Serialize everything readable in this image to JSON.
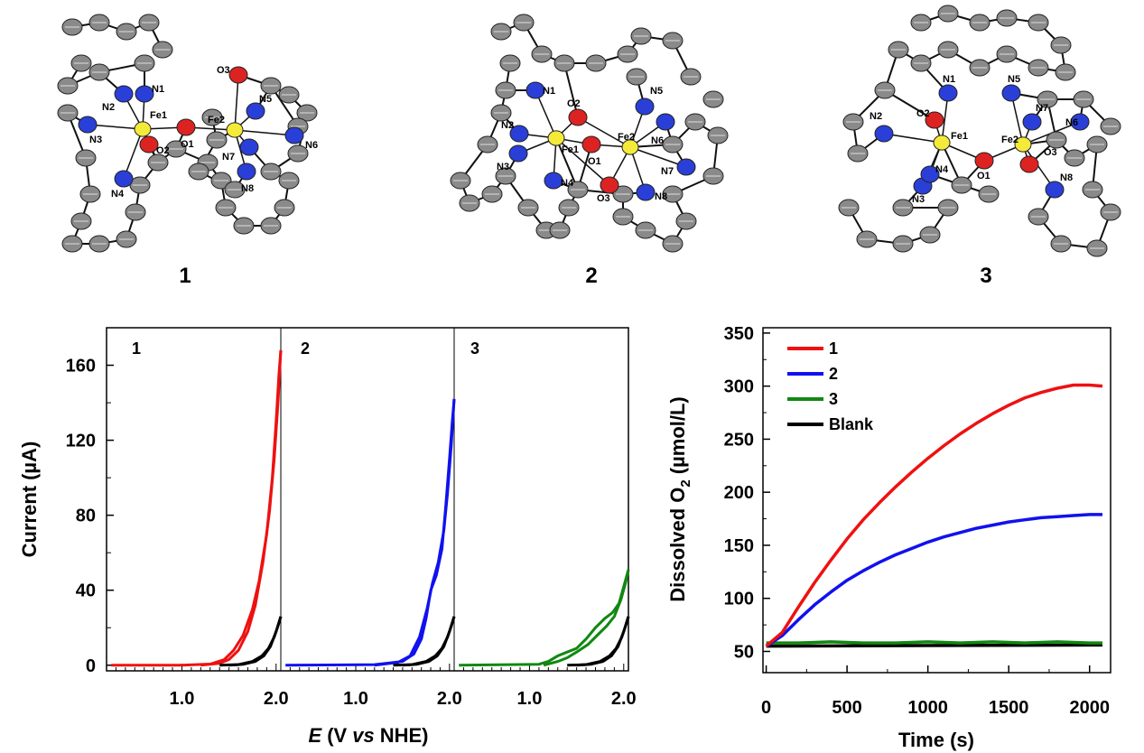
{
  "structures": [
    {
      "label": "1",
      "atoms": [
        "N1",
        "N2",
        "N3",
        "N4",
        "Fe1",
        "O1",
        "O2",
        "Fe2",
        "O3",
        "N5",
        "N6",
        "N7",
        "N8"
      ]
    },
    {
      "label": "2",
      "atoms": [
        "N1",
        "N2",
        "N3",
        "N4",
        "O2",
        "Fe1",
        "O1",
        "Fe2",
        "N5",
        "N6",
        "N7",
        "O3",
        "N8"
      ]
    },
    {
      "label": "3",
      "atoms": [
        "N1",
        "N5",
        "N2",
        "O2",
        "Fe1",
        "N3",
        "N4",
        "O1",
        "N7",
        "Fe2",
        "O3",
        "N6",
        "N8"
      ]
    }
  ],
  "chart_data": [
    {
      "type": "line",
      "panels": [
        "1",
        "2",
        "3"
      ],
      "xlabel_italic": "E",
      "xlabel_mid": "(V",
      "xlabel_italic2": "vs",
      "xlabel_end": "NHE)",
      "ylabel_main": "Current",
      "ylabel_unit": "(µA)",
      "ylim": [
        -3,
        180
      ],
      "xlim": [
        0.2,
        2.05
      ],
      "y_ticks": [
        0,
        40,
        80,
        120,
        160
      ],
      "y_tick_labels": [
        "0",
        "40",
        "80",
        "120",
        "160"
      ],
      "x_ticks": [
        1.0,
        2.0
      ],
      "x_tick_labels": [
        "1.0",
        "2.0"
      ],
      "series": [
        {
          "panel": "1",
          "color": "#ee1111",
          "forward": [
            [
              0.25,
              0
            ],
            [
              1.0,
              0
            ],
            [
              1.3,
              0.6
            ],
            [
              1.45,
              3
            ],
            [
              1.55,
              8
            ],
            [
              1.65,
              16
            ],
            [
              1.75,
              30
            ],
            [
              1.82,
              45
            ],
            [
              1.9,
              70
            ],
            [
              1.96,
              100
            ],
            [
              2.0,
              130
            ],
            [
              2.03,
              155
            ],
            [
              2.05,
              168
            ]
          ],
          "reverse": [
            [
              2.05,
              168
            ],
            [
              2.02,
              140
            ],
            [
              1.98,
              110
            ],
            [
              1.93,
              82
            ],
            [
              1.86,
              55
            ],
            [
              1.78,
              32
            ],
            [
              1.7,
              18
            ],
            [
              1.6,
              8
            ],
            [
              1.5,
              3
            ],
            [
              1.4,
              1
            ],
            [
              1.2,
              0
            ]
          ]
        },
        {
          "panel": "1",
          "color": "#000000",
          "forward": [
            [
              1.4,
              0
            ],
            [
              1.6,
              0.3
            ],
            [
              1.75,
              2
            ],
            [
              1.85,
              5
            ],
            [
              1.92,
              9
            ],
            [
              1.98,
              15
            ],
            [
              2.02,
              21
            ],
            [
              2.05,
              26
            ]
          ],
          "reverse": [
            [
              2.05,
              26
            ],
            [
              2.0,
              18
            ],
            [
              1.94,
              10
            ],
            [
              1.87,
              5
            ],
            [
              1.78,
              2
            ],
            [
              1.65,
              0.5
            ],
            [
              1.5,
              0
            ]
          ]
        },
        {
          "panel": "2",
          "color": "#1111ee",
          "forward": [
            [
              0.25,
              0
            ],
            [
              1.2,
              0.3
            ],
            [
              1.5,
              2
            ],
            [
              1.62,
              6
            ],
            [
              1.7,
              14
            ],
            [
              1.75,
              25
            ],
            [
              1.8,
              40
            ],
            [
              1.86,
              48
            ],
            [
              1.92,
              62
            ],
            [
              1.96,
              85
            ],
            [
              2.0,
              110
            ],
            [
              2.03,
              130
            ],
            [
              2.05,
              142
            ]
          ],
          "reverse": [
            [
              2.05,
              142
            ],
            [
              2.02,
              118
            ],
            [
              1.98,
              92
            ],
            [
              1.94,
              72
            ],
            [
              1.88,
              55
            ],
            [
              1.82,
              44
            ],
            [
              1.76,
              30
            ],
            [
              1.68,
              15
            ],
            [
              1.58,
              5
            ],
            [
              1.45,
              1.5
            ],
            [
              1.2,
              0
            ]
          ]
        },
        {
          "panel": "2",
          "color": "#000000",
          "forward": [
            [
              1.4,
              0
            ],
            [
              1.6,
              0.3
            ],
            [
              1.75,
              2
            ],
            [
              1.85,
              5
            ],
            [
              1.92,
              9
            ],
            [
              1.98,
              15
            ],
            [
              2.02,
              21
            ],
            [
              2.05,
              26
            ]
          ],
          "reverse": [
            [
              2.05,
              26
            ],
            [
              2.0,
              18
            ],
            [
              1.94,
              10
            ],
            [
              1.87,
              5
            ],
            [
              1.78,
              2
            ],
            [
              1.65,
              0.5
            ],
            [
              1.5,
              0
            ]
          ]
        },
        {
          "panel": "3",
          "color": "#118811",
          "forward": [
            [
              0.25,
              0
            ],
            [
              1.1,
              0.5
            ],
            [
              1.2,
              2
            ],
            [
              1.3,
              5
            ],
            [
              1.4,
              7
            ],
            [
              1.5,
              9
            ],
            [
              1.6,
              14
            ],
            [
              1.7,
              20
            ],
            [
              1.8,
              25
            ],
            [
              1.88,
              28
            ],
            [
              1.95,
              33
            ],
            [
              2.0,
              42
            ],
            [
              2.05,
              51
            ]
          ],
          "reverse": [
            [
              2.05,
              51
            ],
            [
              2.02,
              44
            ],
            [
              1.97,
              35
            ],
            [
              1.9,
              26
            ],
            [
              1.82,
              21
            ],
            [
              1.72,
              16
            ],
            [
              1.62,
              11
            ],
            [
              1.5,
              7
            ],
            [
              1.4,
              4
            ],
            [
              1.3,
              2
            ],
            [
              1.15,
              0
            ]
          ]
        },
        {
          "panel": "3",
          "color": "#000000",
          "forward": [
            [
              1.4,
              0
            ],
            [
              1.6,
              0.3
            ],
            [
              1.75,
              2
            ],
            [
              1.85,
              5
            ],
            [
              1.92,
              9
            ],
            [
              1.98,
              15
            ],
            [
              2.02,
              21
            ],
            [
              2.05,
              26
            ]
          ],
          "reverse": [
            [
              2.05,
              26
            ],
            [
              2.0,
              18
            ],
            [
              1.94,
              10
            ],
            [
              1.87,
              5
            ],
            [
              1.78,
              2
            ],
            [
              1.65,
              0.5
            ],
            [
              1.5,
              0
            ]
          ]
        }
      ]
    },
    {
      "type": "line",
      "xlabel": "Time (s)",
      "ylabel_main": "Dissolved O",
      "ylabel_sub": "2",
      "ylabel_unit": "(µmol/L)",
      "xlim": [
        -20,
        2130
      ],
      "ylim": [
        30,
        355
      ],
      "x_ticks": [
        0,
        500,
        1000,
        1500,
        2000
      ],
      "x_tick_labels": [
        "0",
        "500",
        "1000",
        "1500",
        "2000"
      ],
      "y_ticks": [
        50,
        100,
        150,
        200,
        250,
        300,
        350
      ],
      "y_tick_labels": [
        "50",
        "100",
        "150",
        "200",
        "250",
        "300",
        "350"
      ],
      "legend_position": "top-left",
      "series": [
        {
          "name": "1",
          "color": "#ee1111",
          "points": [
            [
              0,
              55
            ],
            [
              100,
              68
            ],
            [
              200,
              92
            ],
            [
              300,
              115
            ],
            [
              400,
              136
            ],
            [
              500,
              156
            ],
            [
              600,
              174
            ],
            [
              700,
              190
            ],
            [
              800,
              205
            ],
            [
              900,
              219
            ],
            [
              1000,
              232
            ],
            [
              1100,
              244
            ],
            [
              1200,
              255
            ],
            [
              1300,
              265
            ],
            [
              1400,
              274
            ],
            [
              1500,
              282
            ],
            [
              1600,
              289
            ],
            [
              1700,
              294
            ],
            [
              1800,
              298
            ],
            [
              1900,
              301
            ],
            [
              2000,
              301
            ],
            [
              2080,
              300
            ]
          ]
        },
        {
          "name": "2",
          "color": "#1111ee",
          "points": [
            [
              0,
              55
            ],
            [
              100,
              65
            ],
            [
              200,
              80
            ],
            [
              300,
              94
            ],
            [
              400,
              106
            ],
            [
              500,
              117
            ],
            [
              600,
              126
            ],
            [
              700,
              134
            ],
            [
              800,
              141
            ],
            [
              900,
              147
            ],
            [
              1000,
              153
            ],
            [
              1100,
              158
            ],
            [
              1200,
              162
            ],
            [
              1300,
              166
            ],
            [
              1400,
              169
            ],
            [
              1500,
              172
            ],
            [
              1600,
              174
            ],
            [
              1700,
              176
            ],
            [
              1800,
              177
            ],
            [
              1900,
              178
            ],
            [
              2000,
              179
            ],
            [
              2080,
              179
            ]
          ]
        },
        {
          "name": "3",
          "color": "#118811",
          "points": [
            [
              0,
              58
            ],
            [
              200,
              58
            ],
            [
              400,
              59
            ],
            [
              600,
              58
            ],
            [
              800,
              58
            ],
            [
              1000,
              59
            ],
            [
              1200,
              58
            ],
            [
              1400,
              59
            ],
            [
              1600,
              58
            ],
            [
              1800,
              59
            ],
            [
              2000,
              58
            ],
            [
              2080,
              58
            ]
          ]
        },
        {
          "name": "Blank",
          "color": "#000000",
          "points": [
            [
              0,
              55
            ],
            [
              2080,
              56
            ]
          ]
        }
      ]
    }
  ]
}
